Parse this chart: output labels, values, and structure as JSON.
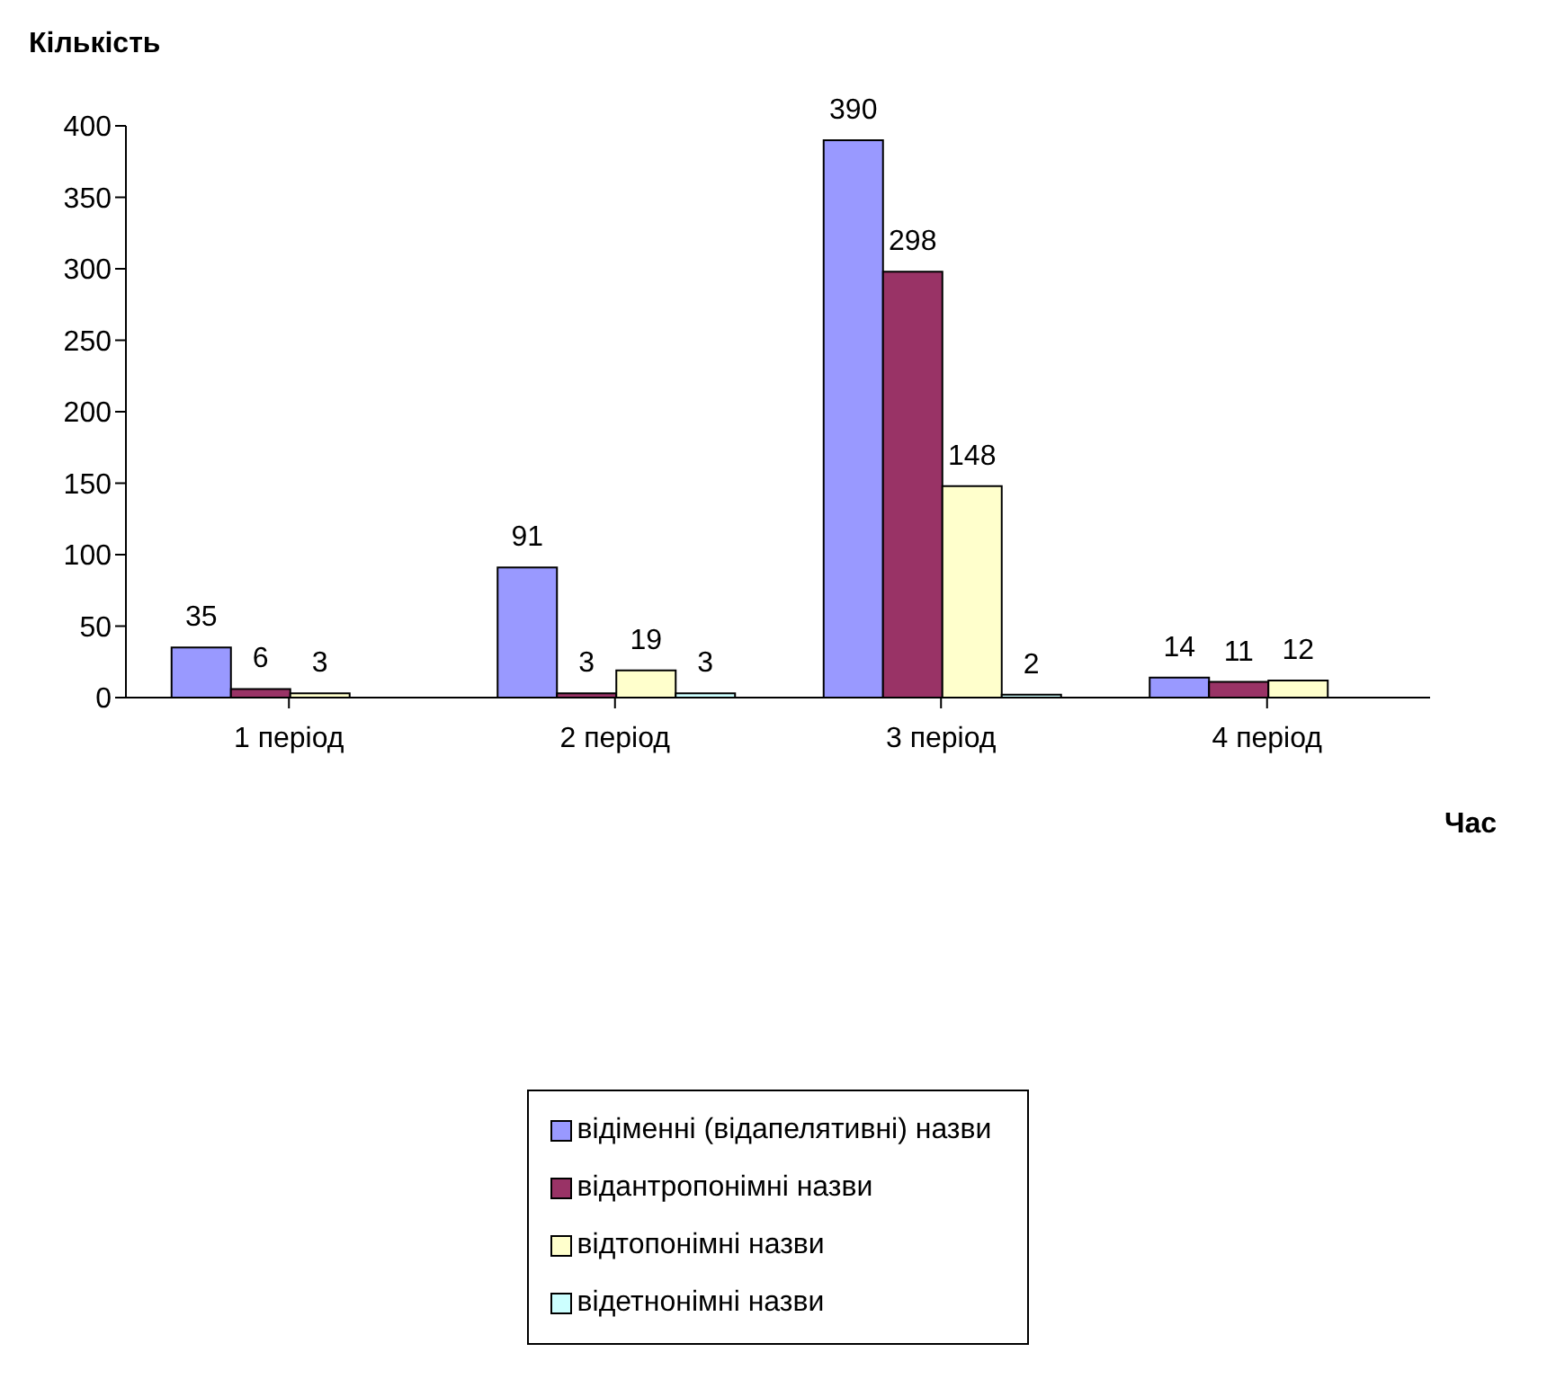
{
  "chart_data": {
    "type": "bar",
    "ylabel": "Кількість",
    "xlabel": "Час",
    "categories": [
      "1 період",
      "2 період",
      "3 період",
      "4 період"
    ],
    "series": [
      {
        "name": "відіменні (відапелятивні) назви",
        "color": "#9999ff",
        "values": [
          35,
          91,
          390,
          14
        ]
      },
      {
        "name": "відантропонімні назви",
        "color": "#993366",
        "values": [
          6,
          3,
          298,
          11
        ]
      },
      {
        "name": "відтопонімні назви",
        "color": "#ffffcc",
        "values": [
          3,
          19,
          148,
          12
        ]
      },
      {
        "name": "відетнонімні назви",
        "color": "#ccffff",
        "values": [
          null,
          3,
          2,
          null
        ]
      }
    ],
    "ylim": [
      0,
      400
    ],
    "yticks": [
      0,
      50,
      100,
      150,
      200,
      250,
      300,
      350,
      400
    ],
    "data_labels": true,
    "grid": false,
    "legend": "bottom"
  }
}
